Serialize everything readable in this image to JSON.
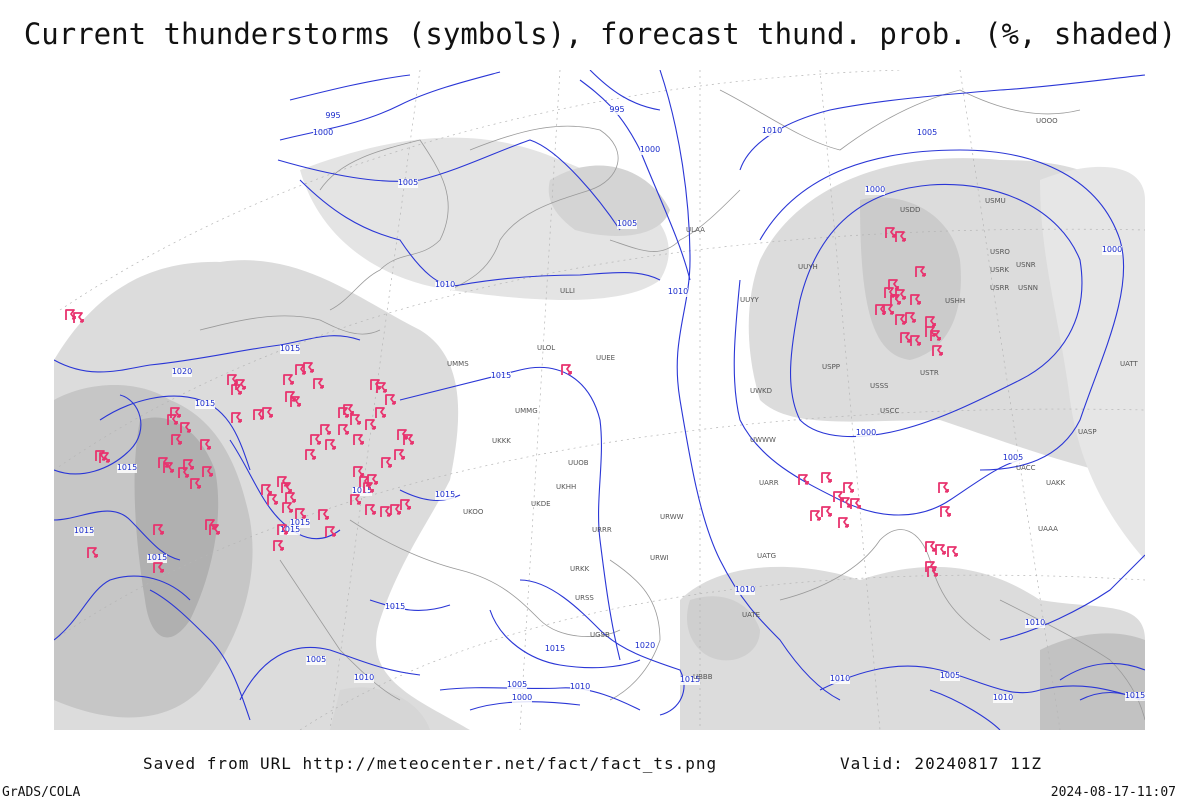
{
  "title": "Current thunderstorms (symbols), forecast thund. prob. (%, shaded)",
  "footer": {
    "source": "Saved from URL http://meteocenter.net/fact/fact_ts.png",
    "valid": "Valid: 20240817 11Z",
    "software": "GrADS/COLA",
    "timestamp": "2024-08-17-11:07"
  },
  "isobar_labels": [
    "995",
    "1000",
    "1005",
    "995",
    "1000",
    "1005",
    "1010",
    "1005",
    "1000",
    "1000",
    "1010",
    "1010",
    "1015",
    "1020",
    "1015",
    "1015",
    "1015",
    "1015",
    "1015",
    "1015",
    "1015",
    "1015",
    "1015",
    "1000",
    "1005",
    "1010",
    "1015",
    "1015",
    "1020",
    "1015",
    "1005",
    "1010",
    "1005",
    "1000",
    "1010",
    "1010",
    "1005",
    "1010",
    "1010",
    "1015"
  ],
  "stations": [
    "ULAA",
    "UUYY",
    "ULLI",
    "UUEE",
    "ULOL",
    "UMMS",
    "UMMG",
    "UKKK",
    "UUOB",
    "UKHH",
    "UKDE",
    "UKOO",
    "URRR",
    "URWI",
    "URKK",
    "URSS",
    "UGSB",
    "UBBB",
    "UATG",
    "UATE",
    "UARR",
    "URWW",
    "UWKD",
    "UWWW",
    "USCC",
    "USSS",
    "USTR",
    "USPP",
    "UUYH",
    "USHH",
    "USRR",
    "USNN",
    "USRK",
    "USNR",
    "USRO",
    "USMU",
    "USDD",
    "UAAA",
    "UACC",
    "UAKK",
    "UASP",
    "UATT",
    "UOOO"
  ]
}
